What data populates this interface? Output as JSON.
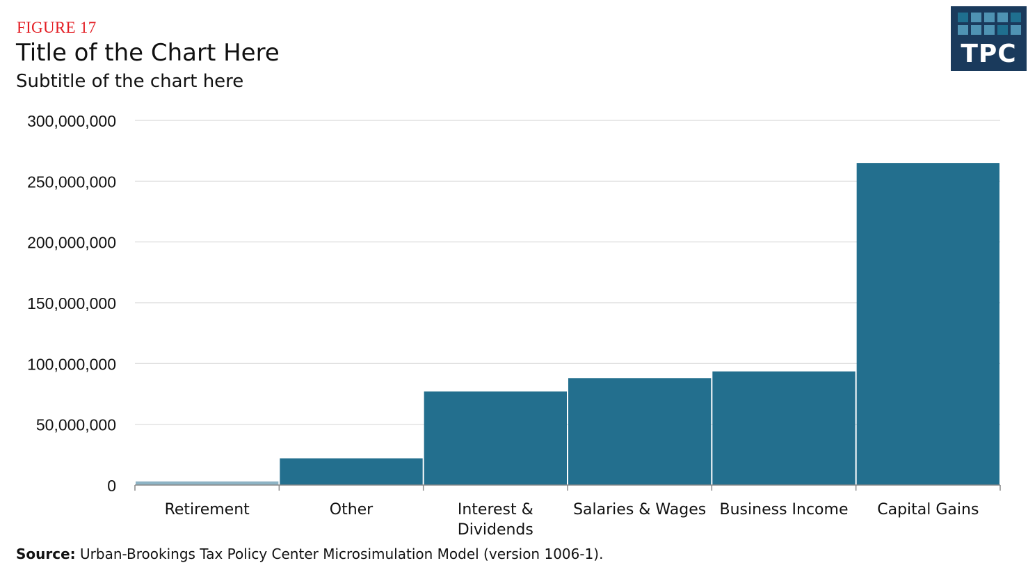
{
  "header": {
    "figure_label": "FIGURE 17",
    "title": "Title of the Chart Here",
    "subtitle": "Subtitle of the chart here"
  },
  "logo": {
    "text": "TPC",
    "background": "#1a3a5c",
    "square_colors": [
      "#1f6f8f",
      "#4f93b3",
      "#4f93b3",
      "#4f93b3",
      "#1f6f8f",
      "#4f93b3",
      "#4f93b3",
      "#4f93b3",
      "#1f6f8f",
      "#4f93b3"
    ]
  },
  "source": {
    "label": "Source:",
    "text": "Urban-Brookings Tax Policy Center Microsimulation Model (version 1006-1)."
  },
  "colors": {
    "bar": "#236f8e",
    "bar_highlight": "#8db3c4",
    "grid": "#d9d9d9",
    "axis": "#888888"
  },
  "chart_data": {
    "type": "bar",
    "title": "Title of the Chart Here",
    "subtitle": "Subtitle of the chart here",
    "categories": [
      "Retirement",
      "Other",
      "Interest & Dividends",
      "Salaries & Wages",
      "Business Income",
      "Capital Gains"
    ],
    "category_labels": [
      [
        "Retirement"
      ],
      [
        "Other"
      ],
      [
        "Interest &",
        "Dividends"
      ],
      [
        "Salaries & Wages"
      ],
      [
        "Business Income"
      ],
      [
        "Capital Gains"
      ]
    ],
    "values": [
      3000000,
      22000000,
      77000000,
      88000000,
      93500000,
      265000000
    ],
    "highlight_index": 0,
    "ylim": [
      0,
      300000000
    ],
    "yticks": [
      0,
      50000000,
      100000000,
      150000000,
      200000000,
      250000000,
      300000000
    ],
    "ytick_labels": [
      "0",
      "50,000,000",
      "100,000,000",
      "150,000,000",
      "200,000,000",
      "250,000,000",
      "300,000,000"
    ],
    "xlabel": "",
    "ylabel": "",
    "grid": true
  }
}
